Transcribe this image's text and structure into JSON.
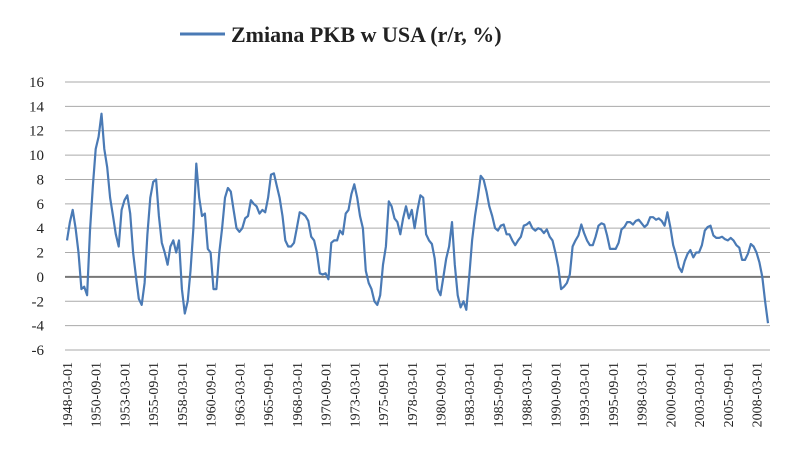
{
  "chart_data": {
    "type": "line",
    "categories": [
      "1948-03-01",
      null,
      null,
      null,
      null,
      null,
      null,
      null,
      null,
      null,
      "1950-09-01",
      null,
      null,
      null,
      null,
      null,
      null,
      null,
      null,
      null,
      "1953-03-01",
      null,
      null,
      null,
      null,
      null,
      null,
      null,
      null,
      null,
      "1955-09-01",
      null,
      null,
      null,
      null,
      null,
      null,
      null,
      null,
      null,
      "1958-03-01",
      null,
      null,
      null,
      null,
      null,
      null,
      null,
      null,
      null,
      "1960-09-01",
      null,
      null,
      null,
      null,
      null,
      null,
      null,
      null,
      null,
      "1963-03-01",
      null,
      null,
      null,
      null,
      null,
      null,
      null,
      null,
      null,
      "1965-09-01",
      null,
      null,
      null,
      null,
      null,
      null,
      null,
      null,
      null,
      "1968-03-01",
      null,
      null,
      null,
      null,
      null,
      null,
      null,
      null,
      null,
      "1970-09-01",
      null,
      null,
      null,
      null,
      null,
      null,
      null,
      null,
      null,
      "1973-03-01",
      null,
      null,
      null,
      null,
      null,
      null,
      null,
      null,
      null,
      "1975-09-01",
      null,
      null,
      null,
      null,
      null,
      null,
      null,
      null,
      null,
      "1978-03-01",
      null,
      null,
      null,
      null,
      null,
      null,
      null,
      null,
      null,
      "1980-09-01",
      null,
      null,
      null,
      null,
      null,
      null,
      null,
      null,
      null,
      "1983-03-01",
      null,
      null,
      null,
      null,
      null,
      null,
      null,
      null,
      null,
      "1985-09-01",
      null,
      null,
      null,
      null,
      null,
      null,
      null,
      null,
      null,
      "1988-03-01",
      null,
      null,
      null,
      null,
      null,
      null,
      null,
      null,
      null,
      "1990-09-01",
      null,
      null,
      null,
      null,
      null,
      null,
      null,
      null,
      null,
      "1993-03-01",
      null,
      null,
      null,
      null,
      null,
      null,
      null,
      null,
      null,
      "1995-09-01",
      null,
      null,
      null,
      null,
      null,
      null,
      null,
      null,
      null,
      "1998-03-01",
      null,
      null,
      null,
      null,
      null,
      null,
      null,
      null,
      null,
      "2000-09-01",
      null,
      null,
      null,
      null,
      null,
      null,
      null,
      null,
      null,
      "2003-03-01",
      null,
      null,
      null,
      null,
      null,
      null,
      null,
      null,
      null,
      "2005-09-01",
      null,
      null,
      null,
      null,
      null,
      null,
      null,
      null,
      null,
      "2008-03-01",
      null,
      null,
      null,
      null
    ],
    "series": [
      {
        "name": "Zmiana PKB w USA  (r/r, %)",
        "color": "#4a7ab5",
        "values": [
          3.0,
          4.5,
          5.5,
          4.0,
          2.0,
          -1.0,
          -0.8,
          -1.5,
          3.8,
          7.5,
          10.5,
          11.5,
          13.4,
          10.5,
          9.0,
          6.5,
          5.0,
          3.5,
          2.5,
          5.5,
          6.3,
          6.7,
          5.2,
          2.0,
          0.0,
          -1.8,
          -2.3,
          -0.5,
          3.5,
          6.5,
          7.8,
          8.0,
          5.0,
          2.8,
          2.0,
          1.0,
          2.5,
          3.0,
          2.0,
          3.0,
          -1.0,
          -3.0,
          -2.0,
          0.5,
          4.0,
          9.3,
          6.5,
          5.0,
          5.2,
          2.3,
          2.0,
          -1.0,
          -1.0,
          2.0,
          4.0,
          6.5,
          7.3,
          7.0,
          5.5,
          4.0,
          3.7,
          4.0,
          4.8,
          5.0,
          6.3,
          6.0,
          5.8,
          5.2,
          5.5,
          5.3,
          6.5,
          8.4,
          8.5,
          7.5,
          6.5,
          5.0,
          3.0,
          2.5,
          2.5,
          2.8,
          4.0,
          5.3,
          5.2,
          5.0,
          4.6,
          3.3,
          3.0,
          2.0,
          0.3,
          0.2,
          0.3,
          -0.2,
          2.8,
          3.0,
          3.0,
          3.8,
          3.5,
          5.2,
          5.5,
          6.8,
          7.6,
          6.5,
          5.0,
          4.0,
          0.5,
          -0.5,
          -1.0,
          -2.0,
          -2.3,
          -1.5,
          1.0,
          2.5,
          6.2,
          5.8,
          4.8,
          4.5,
          3.5,
          4.8,
          5.8,
          4.8,
          5.5,
          4.0,
          5.5,
          6.7,
          6.5,
          3.5,
          3.0,
          2.7,
          1.5,
          -1.0,
          -1.5,
          0.0,
          1.5,
          2.5,
          4.5,
          1.0,
          -1.5,
          -2.5,
          -2.0,
          -2.7,
          0.0,
          3.0,
          5.0,
          6.5,
          8.3,
          8.0,
          7.0,
          5.8,
          5.0,
          4.0,
          3.8,
          4.2,
          4.3,
          3.5,
          3.5,
          3.0,
          2.6,
          3.0,
          3.3,
          4.2,
          4.3,
          4.5,
          4.0,
          3.8,
          4.0,
          3.9,
          3.6,
          3.9,
          3.3,
          3.0,
          2.0,
          0.8,
          -1.0,
          -0.8,
          -0.5,
          0.2,
          2.5,
          3.0,
          3.4,
          4.3,
          3.6,
          3.0,
          2.6,
          2.6,
          3.3,
          4.2,
          4.4,
          4.3,
          3.4,
          2.3,
          2.3,
          2.3,
          2.8,
          3.9,
          4.1,
          4.5,
          4.5,
          4.3,
          4.6,
          4.7,
          4.4,
          4.1,
          4.3,
          4.9,
          4.9,
          4.7,
          4.8,
          4.6,
          4.2,
          5.3,
          4.1,
          2.6,
          1.8,
          0.8,
          0.4,
          1.3,
          1.9,
          2.2,
          1.6,
          2.0,
          2.0,
          2.6,
          3.8,
          4.1,
          4.2,
          3.4,
          3.2,
          3.2,
          3.3,
          3.1,
          3.0,
          3.2,
          3.0,
          2.6,
          2.4,
          1.4,
          1.4,
          1.9,
          2.7,
          2.5,
          2.0,
          1.2,
          0.0,
          -2.0,
          -3.8
        ]
      }
    ],
    "ylim": [
      -6,
      16
    ],
    "yticks": [
      -6,
      -4,
      -2,
      0,
      2,
      4,
      6,
      8,
      10,
      12,
      14,
      16
    ],
    "grid": true,
    "legend": "top"
  }
}
